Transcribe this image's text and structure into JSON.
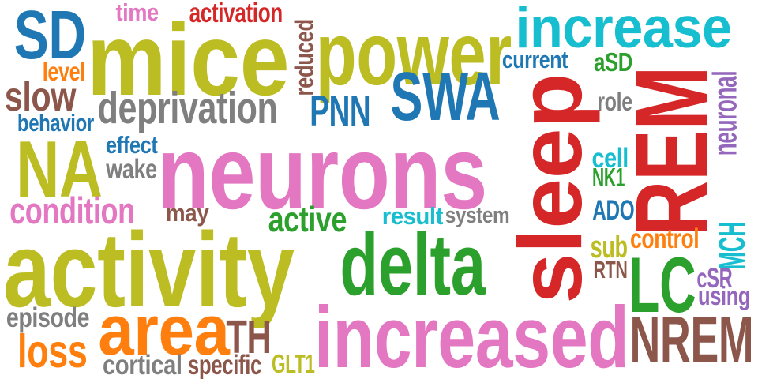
{
  "palette": {
    "olive": "#bcbd22",
    "pink": "#e377c2",
    "blue": "#1f77b4",
    "cyan": "#17becf",
    "red": "#d62728",
    "green": "#2ca02c",
    "brown": "#8c564b",
    "orange": "#ff7f0e",
    "gray": "#7f7f7f",
    "purple": "#9467bd"
  },
  "words": [
    {
      "id": "w-sd",
      "text": "SD",
      "color": "#1f77b4",
      "vertical": false
    },
    {
      "id": "w-time",
      "text": "time",
      "color": "#e377c2",
      "vertical": false
    },
    {
      "id": "w-activation",
      "text": "activation",
      "color": "#d62728",
      "vertical": false
    },
    {
      "id": "w-mice",
      "text": "mice",
      "color": "#bcbd22",
      "vertical": false
    },
    {
      "id": "w-reduced",
      "text": "reduced",
      "color": "#8c564b",
      "vertical": true
    },
    {
      "id": "w-power",
      "text": "power",
      "color": "#bcbd22",
      "vertical": false
    },
    {
      "id": "w-increase",
      "text": "increase",
      "color": "#17becf",
      "vertical": false
    },
    {
      "id": "w-level",
      "text": "level",
      "color": "#ff7f0e",
      "vertical": false
    },
    {
      "id": "w-current",
      "text": "current",
      "color": "#1f77b4",
      "vertical": false
    },
    {
      "id": "w-asd",
      "text": "aSD",
      "color": "#2ca02c",
      "vertical": false
    },
    {
      "id": "w-slow",
      "text": "slow",
      "color": "#8c564b",
      "vertical": false
    },
    {
      "id": "w-deprivation",
      "text": "deprivation",
      "color": "#7f7f7f",
      "vertical": false
    },
    {
      "id": "w-pnn",
      "text": "PNN",
      "color": "#1f77b4",
      "vertical": false
    },
    {
      "id": "w-swa",
      "text": "SWA",
      "color": "#1f77b4",
      "vertical": false
    },
    {
      "id": "w-behavior",
      "text": "behavior",
      "color": "#1f77b4",
      "vertical": false
    },
    {
      "id": "w-role",
      "text": "role",
      "color": "#7f7f7f",
      "vertical": false
    },
    {
      "id": "w-neuronal",
      "text": "neuronal",
      "color": "#9467bd",
      "vertical": true
    },
    {
      "id": "w-na",
      "text": "NA",
      "color": "#bcbd22",
      "vertical": false
    },
    {
      "id": "w-effect",
      "text": "effect",
      "color": "#1f77b4",
      "vertical": false
    },
    {
      "id": "w-wake",
      "text": "wake",
      "color": "#7f7f7f",
      "vertical": false
    },
    {
      "id": "w-neurons",
      "text": "neurons",
      "color": "#e377c2",
      "vertical": false
    },
    {
      "id": "w-sleep",
      "text": "sleep",
      "color": "#d62728",
      "vertical": true
    },
    {
      "id": "w-rem",
      "text": "REM",
      "color": "#d62728",
      "vertical": true
    },
    {
      "id": "w-cell",
      "text": "cell",
      "color": "#17becf",
      "vertical": false
    },
    {
      "id": "w-nk1",
      "text": "NK1",
      "color": "#2ca02c",
      "vertical": false
    },
    {
      "id": "w-condition",
      "text": "condition",
      "color": "#e377c2",
      "vertical": false
    },
    {
      "id": "w-may",
      "text": "may",
      "color": "#8c564b",
      "vertical": false
    },
    {
      "id": "w-active",
      "text": "active",
      "color": "#2ca02c",
      "vertical": false
    },
    {
      "id": "w-result",
      "text": "result",
      "color": "#17becf",
      "vertical": false
    },
    {
      "id": "w-system",
      "text": "system",
      "color": "#7f7f7f",
      "vertical": false
    },
    {
      "id": "w-ado",
      "text": "ADO",
      "color": "#1f77b4",
      "vertical": false
    },
    {
      "id": "w-activity",
      "text": "activity",
      "color": "#bcbd22",
      "vertical": false
    },
    {
      "id": "w-delta",
      "text": "delta",
      "color": "#2ca02c",
      "vertical": false
    },
    {
      "id": "w-control",
      "text": "control",
      "color": "#ff7f0e",
      "vertical": false
    },
    {
      "id": "w-mch",
      "text": "MCH",
      "color": "#17becf",
      "vertical": true
    },
    {
      "id": "w-sub",
      "text": "sub",
      "color": "#bcbd22",
      "vertical": false
    },
    {
      "id": "w-rtn",
      "text": "RTN",
      "color": "#8c564b",
      "vertical": false
    },
    {
      "id": "w-lc",
      "text": "LC",
      "color": "#2ca02c",
      "vertical": false
    },
    {
      "id": "w-csr",
      "text": "cSR",
      "color": "#9467bd",
      "vertical": false
    },
    {
      "id": "w-using",
      "text": "using",
      "color": "#9467bd",
      "vertical": false
    },
    {
      "id": "w-area",
      "text": "area",
      "color": "#ff7f0e",
      "vertical": false
    },
    {
      "id": "w-episode",
      "text": "episode",
      "color": "#7f7f7f",
      "vertical": false
    },
    {
      "id": "w-increased",
      "text": "increased",
      "color": "#e377c2",
      "vertical": false
    },
    {
      "id": "w-th",
      "text": "TH",
      "color": "#8c564b",
      "vertical": false
    },
    {
      "id": "w-nrem",
      "text": "NREM",
      "color": "#8c564b",
      "vertical": false
    },
    {
      "id": "w-loss",
      "text": "loss",
      "color": "#ff7f0e",
      "vertical": false
    },
    {
      "id": "w-cortical",
      "text": "cortical",
      "color": "#7f7f7f",
      "vertical": false
    },
    {
      "id": "w-specific",
      "text": "specific",
      "color": "#8c564b",
      "vertical": false
    },
    {
      "id": "w-glt1",
      "text": "GLT1",
      "color": "#bcbd22",
      "vertical": false
    }
  ]
}
